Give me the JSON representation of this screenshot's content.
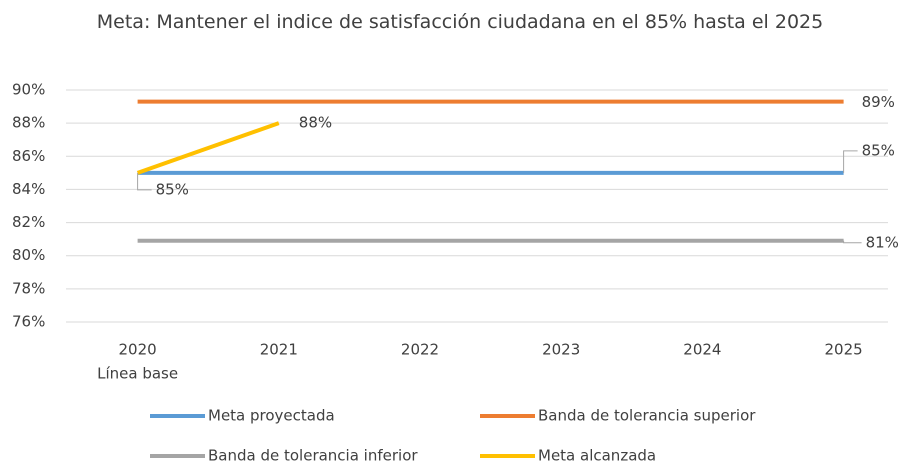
{
  "chart_data": {
    "type": "line",
    "title": "Meta: Mantener el indice de satisfacción ciudadana en el 85% hasta el 2025",
    "categories": [
      "2020",
      "2021",
      "2022",
      "2023",
      "2024",
      "2025"
    ],
    "category_note": "Línea base",
    "ylim": [
      76,
      90
    ],
    "yticks": [
      {
        "value": 76,
        "label": "76%"
      },
      {
        "value": 78,
        "label": "78%"
      },
      {
        "value": 80,
        "label": "80%"
      },
      {
        "value": 82,
        "label": "82%"
      },
      {
        "value": 84,
        "label": "84%"
      },
      {
        "value": 86,
        "label": "86%"
      },
      {
        "value": 88,
        "label": "88%"
      },
      {
        "value": 90,
        "label": "90%"
      }
    ],
    "grid": true,
    "series": [
      {
        "name": "Meta proyectada",
        "color": "#5b9bd5",
        "values": [
          85,
          85,
          85,
          85,
          85,
          85
        ],
        "value_labels": [
          null,
          null,
          null,
          null,
          null,
          "85%"
        ]
      },
      {
        "name": "Banda de tolerancia superior",
        "color": "#ed7d31",
        "values": [
          89.3,
          89.3,
          89.3,
          89.3,
          89.3,
          89.3
        ],
        "value_labels": [
          null,
          null,
          null,
          null,
          null,
          "89%"
        ]
      },
      {
        "name": "Banda de tolerancia inferior",
        "color": "#a5a5a5",
        "values": [
          80.9,
          80.9,
          80.9,
          80.9,
          80.9,
          80.9
        ],
        "value_labels": [
          null,
          null,
          null,
          null,
          null,
          "81%"
        ]
      },
      {
        "name": "Meta alcanzada",
        "color": "#ffc000",
        "values": [
          85,
          88,
          null,
          null,
          null,
          null
        ],
        "value_labels": [
          "85%",
          "88%",
          null,
          null,
          null,
          null
        ]
      }
    ]
  }
}
